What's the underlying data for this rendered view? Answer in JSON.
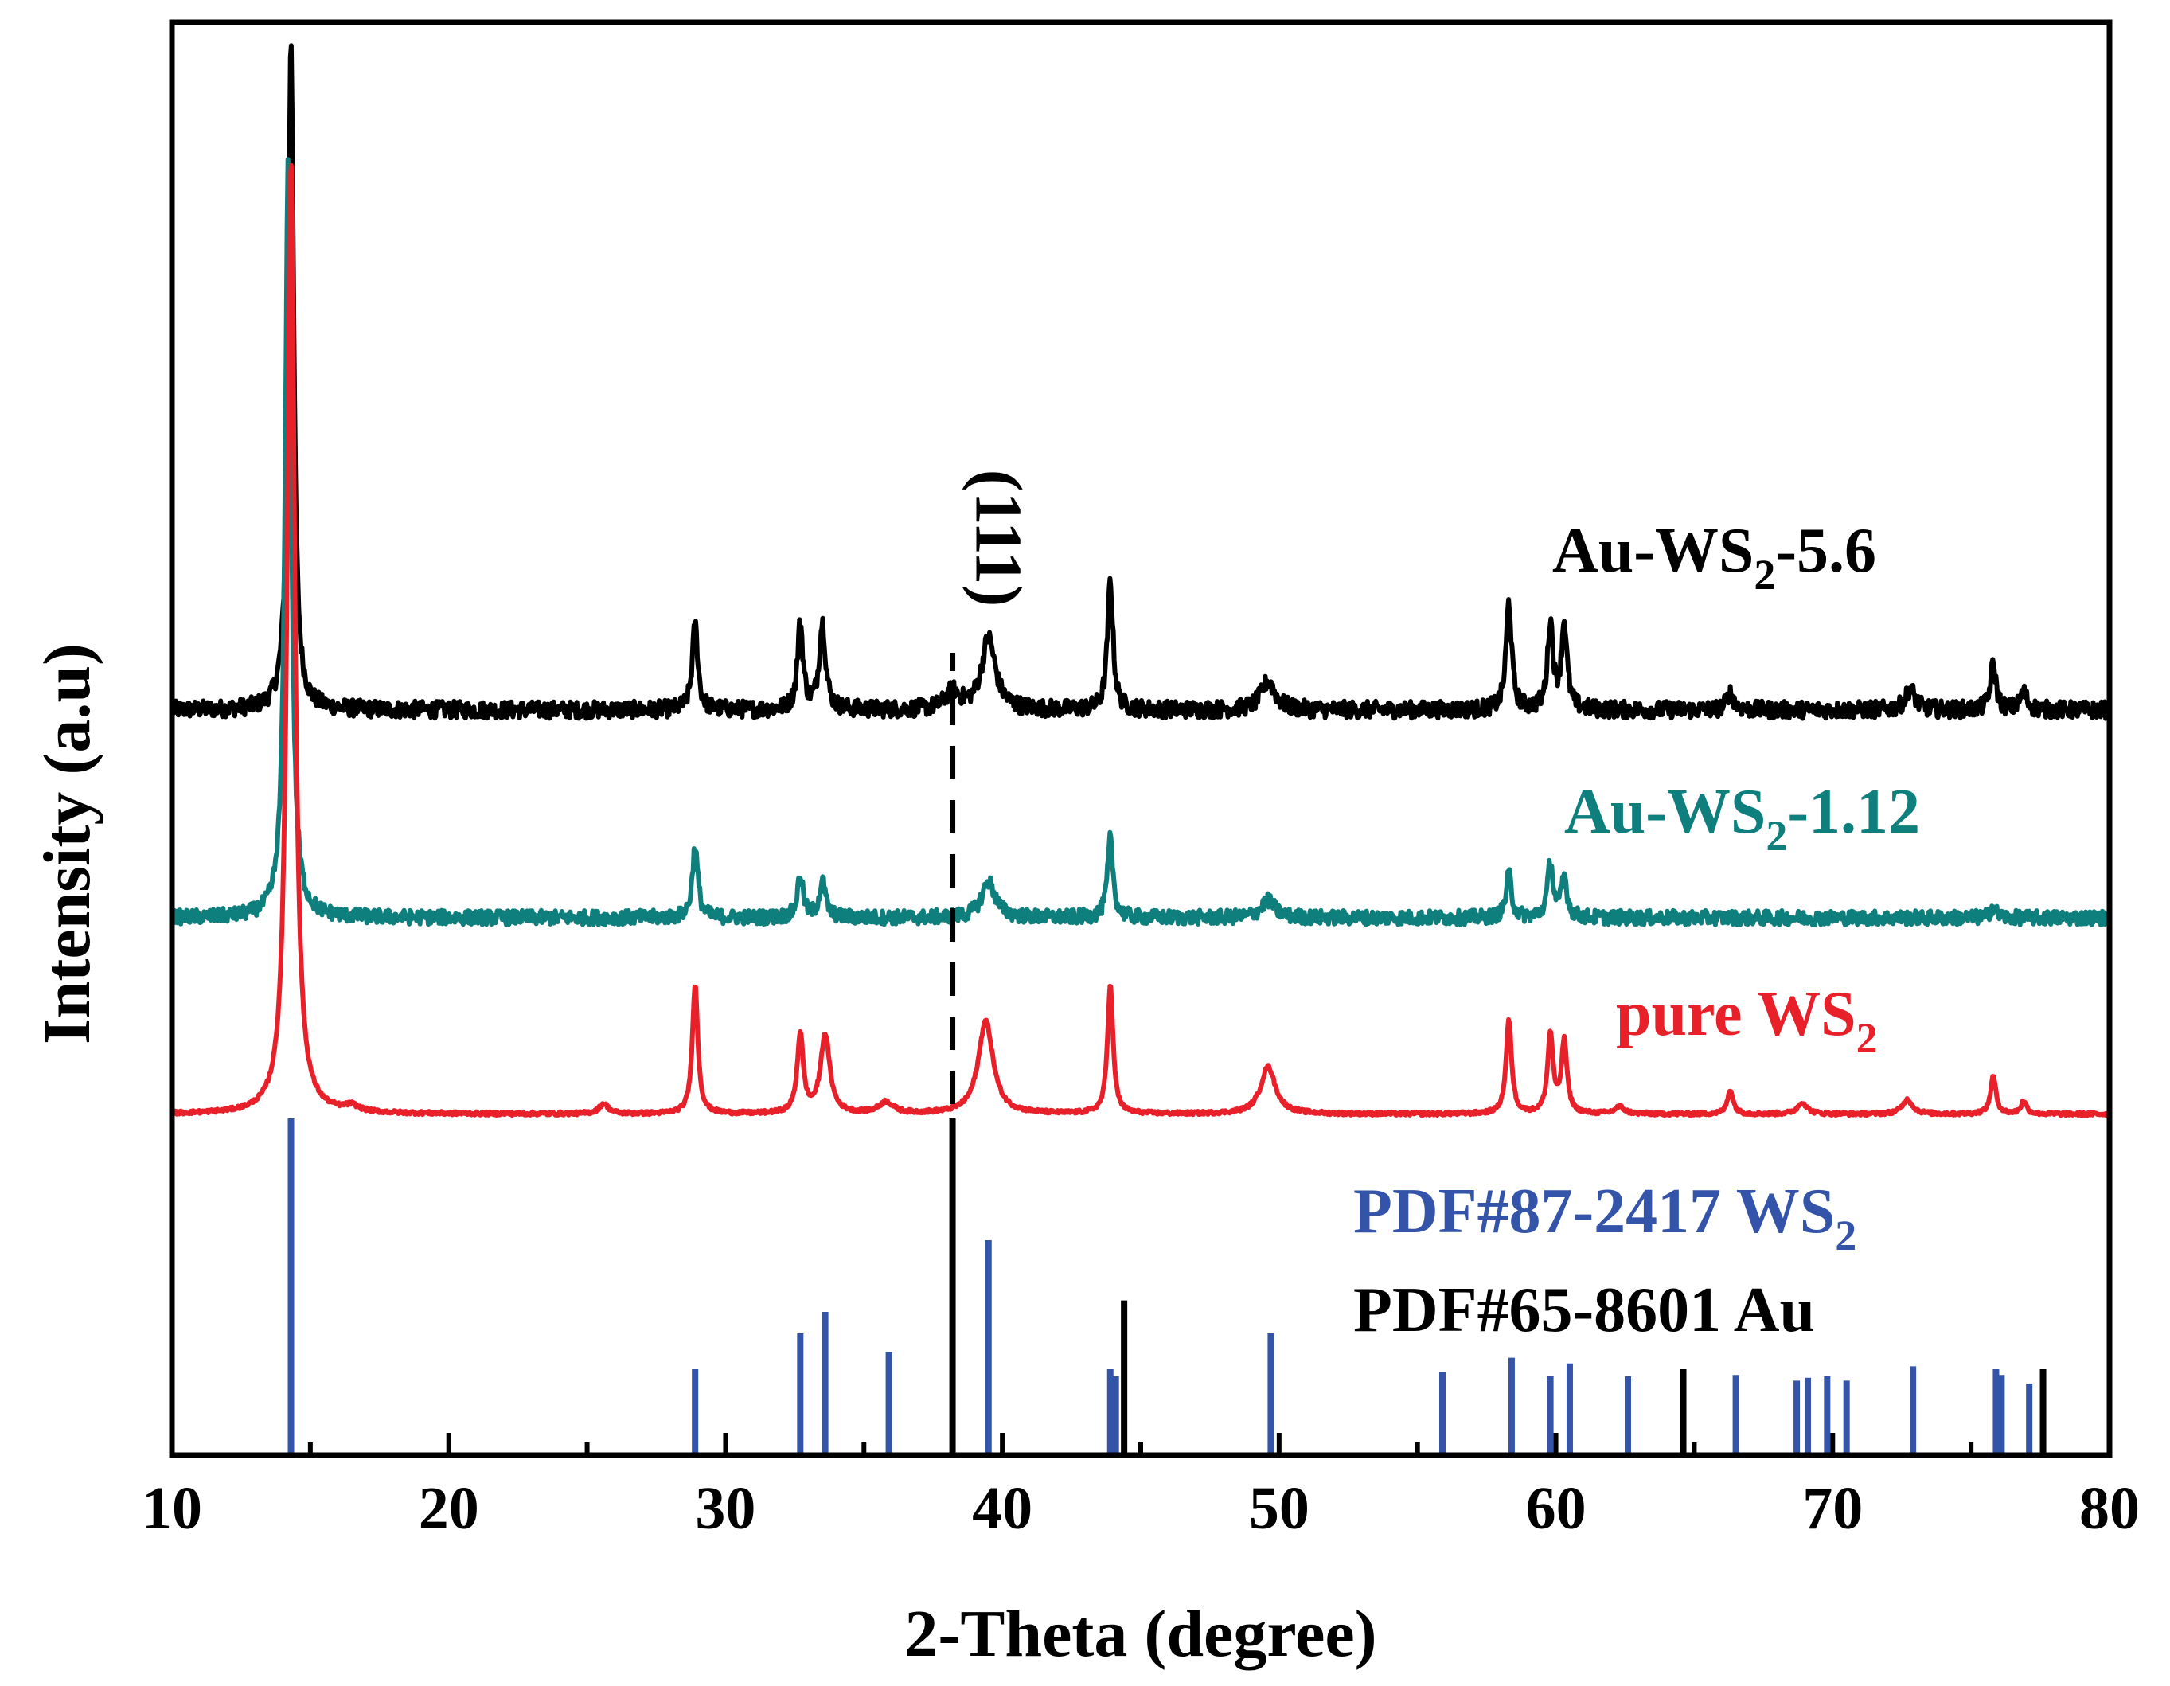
{
  "chart_data": {
    "type": "line",
    "xlabel": "2-Theta (degree)",
    "ylabel": "Intensity (a.u)",
    "xlim": [
      10,
      80
    ],
    "ylim": [
      0,
      100
    ],
    "xticks": [
      "10",
      "20",
      "30",
      "40",
      "50",
      "60",
      "70",
      "80"
    ],
    "annotations": [
      {
        "text": "(111)",
        "x": 38.2,
        "style": "dashed-vertical-line"
      }
    ],
    "series": [
      {
        "name": "Au-WS2-5.6",
        "label_main": "Au-WS",
        "label_sub": "2",
        "label_tail": "-5.6",
        "color": "#000000",
        "baseline": 52,
        "noise": 0.6,
        "peaks": [
          {
            "x": 14.3,
            "h": 47,
            "w": 0.12
          },
          {
            "x": 28.9,
            "h": 6,
            "w": 0.12
          },
          {
            "x": 32.7,
            "h": 6,
            "w": 0.12
          },
          {
            "x": 33.5,
            "h": 6,
            "w": 0.14
          },
          {
            "x": 38.2,
            "h": 1.2,
            "w": 0.3
          },
          {
            "x": 39.5,
            "h": 5,
            "w": 0.3
          },
          {
            "x": 43.9,
            "h": 9,
            "w": 0.12
          },
          {
            "x": 49.6,
            "h": 2,
            "w": 0.3
          },
          {
            "x": 58.3,
            "h": 7.5,
            "w": 0.12
          },
          {
            "x": 59.8,
            "h": 6,
            "w": 0.12
          },
          {
            "x": 60.3,
            "h": 6,
            "w": 0.12
          },
          {
            "x": 66.3,
            "h": 1.2,
            "w": 0.15
          },
          {
            "x": 72.8,
            "h": 1.5,
            "w": 0.2
          },
          {
            "x": 75.8,
            "h": 3.2,
            "w": 0.12
          },
          {
            "x": 76.9,
            "h": 1.2,
            "w": 0.15
          }
        ]
      },
      {
        "name": "Au-WS2-1.12",
        "label_main": "Au-WS",
        "label_sub": "2",
        "label_tail": "-1.12",
        "color": "#0f7f7d",
        "baseline": 37.5,
        "noise": 0.5,
        "peaks": [
          {
            "x": 14.2,
            "h": 53,
            "w": 0.13
          },
          {
            "x": 28.9,
            "h": 5,
            "w": 0.12
          },
          {
            "x": 32.7,
            "h": 3,
            "w": 0.12
          },
          {
            "x": 33.5,
            "h": 2.5,
            "w": 0.14
          },
          {
            "x": 39.5,
            "h": 2.5,
            "w": 0.3
          },
          {
            "x": 43.9,
            "h": 5.5,
            "w": 0.12
          },
          {
            "x": 49.6,
            "h": 1.2,
            "w": 0.3
          },
          {
            "x": 58.3,
            "h": 3,
            "w": 0.12
          },
          {
            "x": 59.8,
            "h": 3.8,
            "w": 0.12
          },
          {
            "x": 60.3,
            "h": 2.8,
            "w": 0.12
          },
          {
            "x": 75.8,
            "h": 0.8,
            "w": 0.12
          }
        ]
      },
      {
        "name": "pure WS2",
        "label_main": "pure WS",
        "label_sub": "2",
        "label_tail": "",
        "color": "#e8202a",
        "baseline": 23.8,
        "noise": 0.12,
        "peaks": [
          {
            "x": 14.3,
            "h": 66.5,
            "w": 0.16
          },
          {
            "x": 16.5,
            "h": 0.4,
            "w": 0.3
          },
          {
            "x": 25.6,
            "h": 0.7,
            "w": 0.2
          },
          {
            "x": 28.9,
            "h": 9,
            "w": 0.12
          },
          {
            "x": 32.7,
            "h": 5.5,
            "w": 0.13
          },
          {
            "x": 33.6,
            "h": 5.5,
            "w": 0.2
          },
          {
            "x": 35.8,
            "h": 0.8,
            "w": 0.3
          },
          {
            "x": 39.4,
            "h": 6.5,
            "w": 0.32
          },
          {
            "x": 43.9,
            "h": 9,
            "w": 0.12
          },
          {
            "x": 49.6,
            "h": 3.3,
            "w": 0.32
          },
          {
            "x": 58.3,
            "h": 6.5,
            "w": 0.12
          },
          {
            "x": 59.8,
            "h": 5.5,
            "w": 0.12
          },
          {
            "x": 60.3,
            "h": 5,
            "w": 0.12
          },
          {
            "x": 62.3,
            "h": 0.5,
            "w": 0.2
          },
          {
            "x": 66.3,
            "h": 1.7,
            "w": 0.12
          },
          {
            "x": 68.9,
            "h": 0.8,
            "w": 0.2
          },
          {
            "x": 72.7,
            "h": 1,
            "w": 0.22
          },
          {
            "x": 75.8,
            "h": 2.6,
            "w": 0.12
          },
          {
            "x": 76.9,
            "h": 0.9,
            "w": 0.12
          }
        ]
      }
    ],
    "reference_patterns": [
      {
        "name": "PDF#87-2417 WS2",
        "label_main": "PDF#87-2417 WS",
        "label_sub": "2",
        "color": "#3354a8",
        "lines": [
          {
            "x": 14.3,
            "h": 23.5
          },
          {
            "x": 28.9,
            "h": 6
          },
          {
            "x": 32.7,
            "h": 8.5
          },
          {
            "x": 33.6,
            "h": 10
          },
          {
            "x": 35.9,
            "h": 7.2
          },
          {
            "x": 39.5,
            "h": 15
          },
          {
            "x": 43.9,
            "h": 6
          },
          {
            "x": 44.1,
            "h": 5.5
          },
          {
            "x": 49.7,
            "h": 8.5
          },
          {
            "x": 55.9,
            "h": 5.8
          },
          {
            "x": 58.4,
            "h": 6.8
          },
          {
            "x": 59.8,
            "h": 5.5
          },
          {
            "x": 60.5,
            "h": 6.4
          },
          {
            "x": 62.6,
            "h": 5.5
          },
          {
            "x": 66.5,
            "h": 5.6
          },
          {
            "x": 68.7,
            "h": 5.2
          },
          {
            "x": 69.1,
            "h": 5.4
          },
          {
            "x": 69.8,
            "h": 5.5
          },
          {
            "x": 70.5,
            "h": 5.2
          },
          {
            "x": 72.9,
            "h": 6.2
          },
          {
            "x": 75.9,
            "h": 6
          },
          {
            "x": 76.1,
            "h": 5.6
          },
          {
            "x": 77.1,
            "h": 5
          }
        ]
      },
      {
        "name": "PDF#65-8601 Au",
        "label_main": "PDF#65-8601 Au",
        "label_sub": "",
        "color": "#000000",
        "lines": [
          {
            "x": 38.2,
            "h": 23.5
          },
          {
            "x": 44.4,
            "h": 10.8
          },
          {
            "x": 64.6,
            "h": 6
          },
          {
            "x": 77.6,
            "h": 6
          }
        ]
      }
    ]
  }
}
